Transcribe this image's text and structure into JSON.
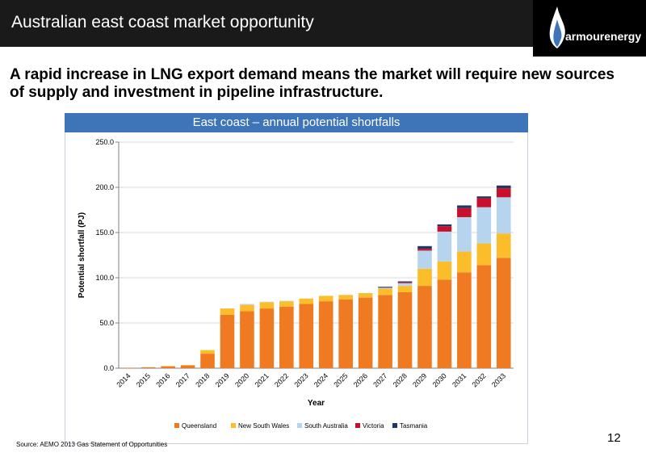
{
  "header": {
    "title": "Australian east coast market opportunity"
  },
  "logo": {
    "text": "armourenergy",
    "flame_colors": [
      "#ffffff",
      "#3e74b8"
    ]
  },
  "headline": "A rapid increase in LNG export demand means the market will require new sources of supply and investment in pipeline infrastructure.",
  "chart_box": {
    "header": "East coast – annual potential shortfalls"
  },
  "footnote": "Source: AEMO 2013 Gas Statement of Opportunities",
  "page_number": "12",
  "chart_data": {
    "type": "bar",
    "stacked": true,
    "xlabel": "Year",
    "ylabel": "Potential shortfall (PJ)",
    "ylim": [
      0,
      250
    ],
    "yticks": [
      "0.0",
      "50.0",
      "100.0",
      "150.0",
      "200.0",
      "250.0"
    ],
    "grid": true,
    "legend_position": "bottom",
    "categories": [
      "2014",
      "2015",
      "2016",
      "2017",
      "2018",
      "2019",
      "2020",
      "2021",
      "2022",
      "2023",
      "2024",
      "2025",
      "2026",
      "2027",
      "2028",
      "2029",
      "2030",
      "2031",
      "2032",
      "2033"
    ],
    "series": [
      {
        "name": "Queensland",
        "color": "#f07a22",
        "values": [
          0.5,
          1,
          2,
          3,
          16,
          59,
          63,
          66,
          68,
          71,
          74,
          76,
          78,
          81,
          84,
          91,
          98,
          106,
          114,
          122
        ]
      },
      {
        "name": "New South Wales",
        "color": "#fbbd29",
        "values": [
          0,
          0,
          0.5,
          0.5,
          4,
          7,
          7,
          7,
          6,
          6,
          6,
          5,
          5,
          7,
          7,
          19,
          20,
          23,
          24,
          27
        ]
      },
      {
        "name": "South Australia",
        "color": "#b7d4ee",
        "values": [
          0,
          0,
          0,
          0,
          0,
          0,
          1,
          0.5,
          0.5,
          0,
          0,
          0,
          0,
          1,
          3,
          20,
          33,
          38,
          40,
          40
        ]
      },
      {
        "name": "Victoria",
        "color": "#c8102e",
        "values": [
          0,
          0,
          0,
          0,
          0,
          0,
          0,
          0,
          0,
          0,
          0,
          0,
          0,
          0,
          1,
          2,
          6,
          10,
          10,
          10
        ]
      },
      {
        "name": "Tasmania",
        "color": "#1f3763",
        "values": [
          0,
          0,
          0,
          0,
          0,
          0,
          0,
          0,
          0,
          0,
          0,
          0,
          0,
          1,
          1,
          3,
          2,
          3,
          2,
          3
        ]
      }
    ]
  }
}
